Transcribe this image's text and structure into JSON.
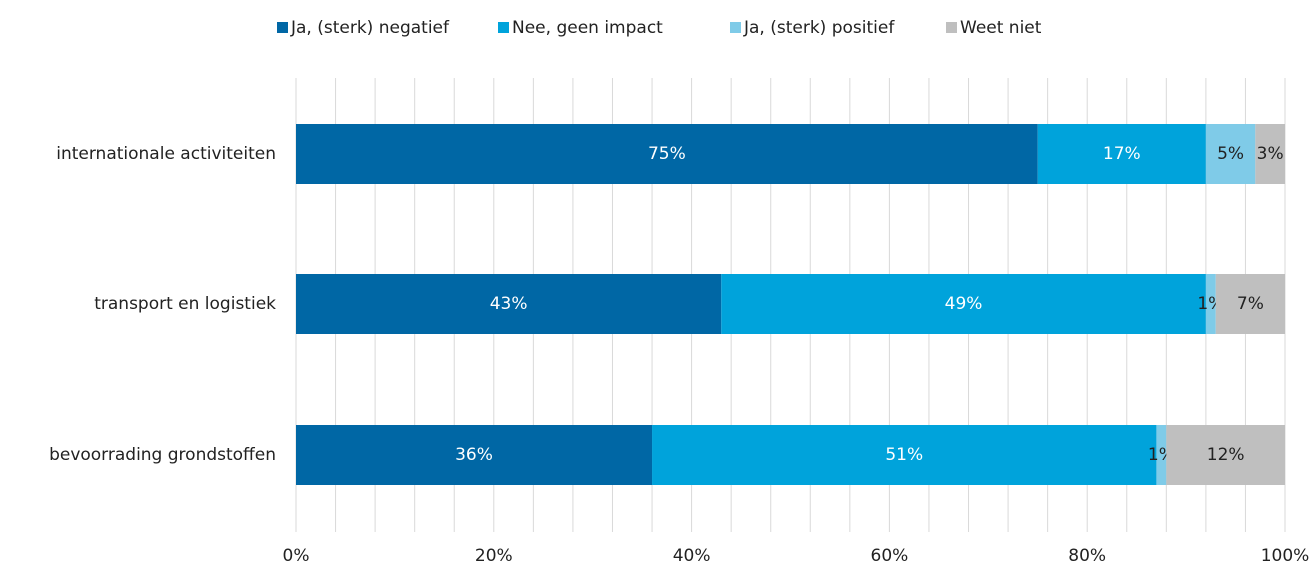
{
  "chart_data": {
    "type": "stacked_barh",
    "categories": [
      "internationale activiteiten",
      "transport en logistiek",
      "bevoorrading grondstoffen"
    ],
    "series": [
      {
        "name": "Ja, (sterk) negatief",
        "color": "#0067a5",
        "label_color": "#ffffff",
        "values": [
          75,
          43,
          36
        ],
        "value_labels": [
          "75%",
          "43%",
          "36%"
        ]
      },
      {
        "name": "Nee, geen impact",
        "color": "#00a3db",
        "label_color": "#ffffff",
        "values": [
          17,
          49,
          51
        ],
        "value_labels": [
          "17%",
          "49%",
          "51%"
        ]
      },
      {
        "name": "Ja, (sterk) positief",
        "color": "#7fcbe8",
        "label_color": "#222222",
        "values": [
          5,
          1,
          1
        ],
        "value_labels": [
          "5%",
          "1%",
          "1%"
        ]
      },
      {
        "name": "Weet niet",
        "color": "#bfbfbf",
        "label_color": "#222222",
        "values": [
          3,
          7,
          12
        ],
        "value_labels": [
          "3%",
          "7%",
          "12%"
        ]
      }
    ],
    "xlim": [
      0,
      100
    ],
    "xticks": [
      {
        "value": 0,
        "label": "0%"
      },
      {
        "value": 20,
        "label": "20%"
      },
      {
        "value": 40,
        "label": "40%"
      },
      {
        "value": 60,
        "label": "60%"
      },
      {
        "value": 80,
        "label": "80%"
      },
      {
        "value": 100,
        "label": "100%"
      }
    ],
    "minor_xticks": [
      4,
      8,
      12,
      16,
      24,
      28,
      32,
      36,
      44,
      48,
      52,
      56,
      64,
      68,
      72,
      76,
      84,
      88,
      92,
      96
    ],
    "grid": true,
    "legend": "top"
  }
}
